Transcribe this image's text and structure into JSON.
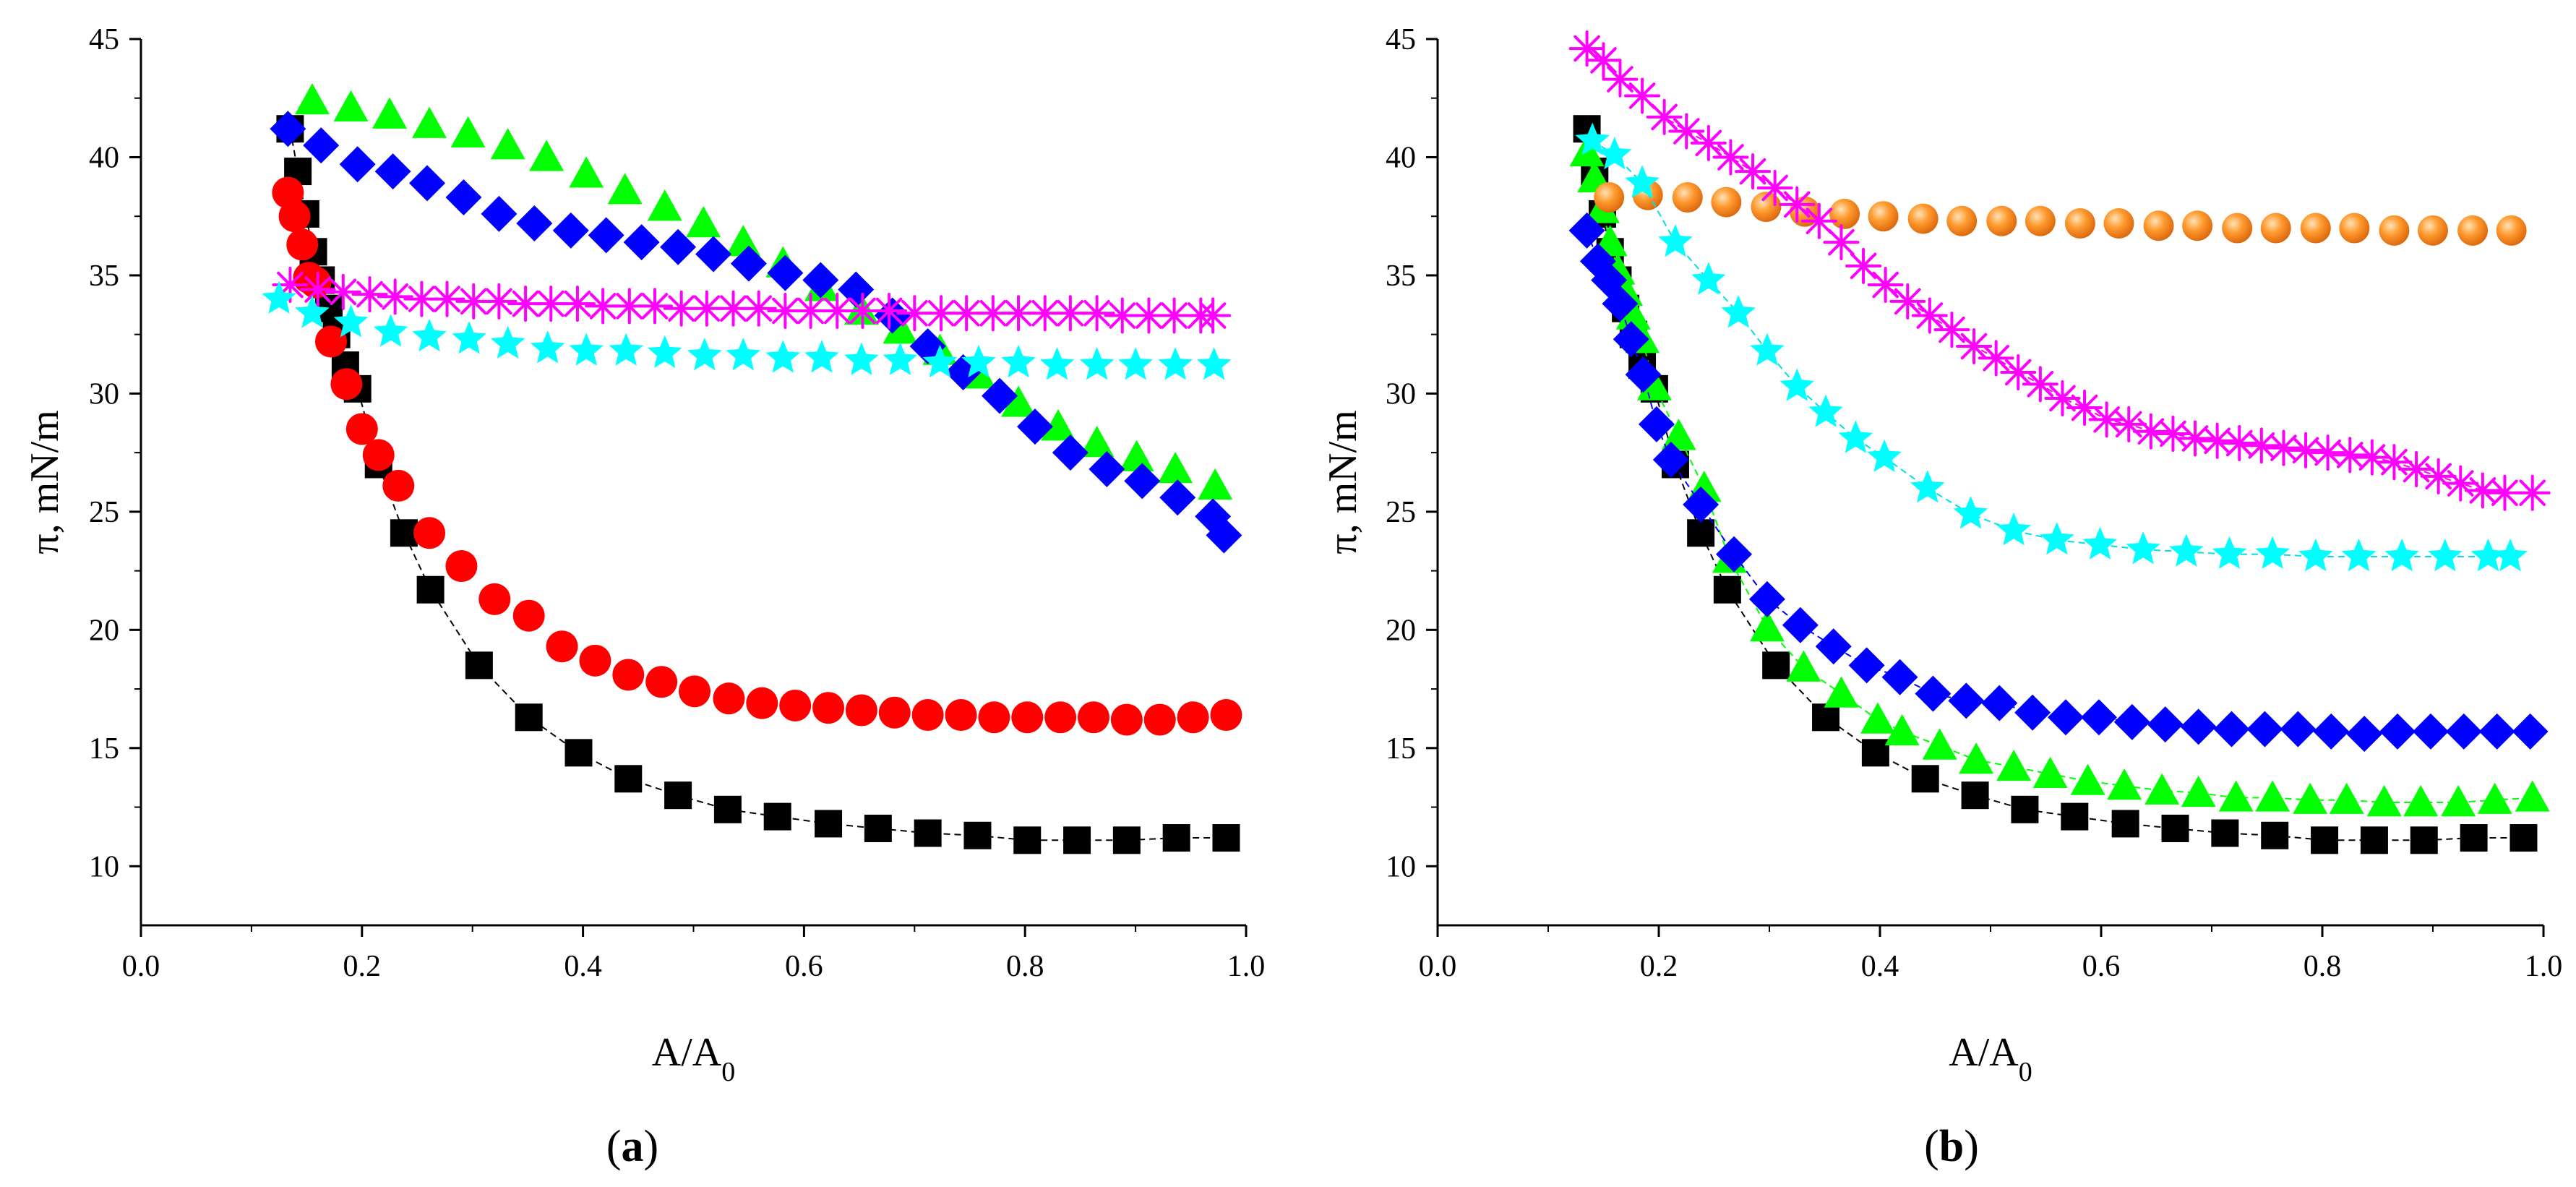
{
  "chart_data": [
    {
      "type": "scatter",
      "panel_label": "(a)",
      "panel_letter": "a",
      "xlabel": "A/A",
      "xlabel_sub": "0",
      "ylabel": "π, mN/m",
      "xlim": [
        0.0,
        1.0
      ],
      "ylim": [
        7.5,
        45
      ],
      "xticks": [
        0.0,
        0.2,
        0.4,
        0.6,
        0.8,
        1.0
      ],
      "xtick_labels": [
        "0.0",
        "0.2",
        "0.4",
        "0.6",
        "0.8",
        "1.0"
      ],
      "yticks": [
        10,
        15,
        20,
        25,
        30,
        35,
        40,
        45
      ],
      "ytick_labels": [
        "10",
        "15",
        "20",
        "25",
        "30",
        "35",
        "40",
        "45"
      ],
      "series": [
        {
          "name": "black-squares",
          "marker": "square",
          "color": "#000000",
          "line": true,
          "x": [
            0.135,
            0.142,
            0.149,
            0.156,
            0.163,
            0.17,
            0.177,
            0.185,
            0.196,
            0.215,
            0.238,
            0.262,
            0.306,
            0.351,
            0.396,
            0.441,
            0.486,
            0.531,
            0.576,
            0.622,
            0.667,
            0.712,
            0.757,
            0.802,
            0.847,
            0.892,
            0.937,
            0.982
          ],
          "y": [
            41.2,
            39.4,
            37.6,
            36.0,
            34.8,
            33.6,
            32.5,
            31.2,
            30.2,
            27.0,
            24.1,
            21.7,
            18.5,
            16.3,
            14.8,
            13.7,
            13.0,
            12.4,
            12.1,
            11.8,
            11.6,
            11.4,
            11.3,
            11.1,
            11.1,
            11.1,
            11.2,
            11.2
          ]
        },
        {
          "name": "red-circles",
          "marker": "circle",
          "color": "#ff0000",
          "line": false,
          "x": [
            0.133,
            0.139,
            0.146,
            0.152,
            0.158,
            0.172,
            0.186,
            0.2,
            0.215,
            0.233,
            0.261,
            0.29,
            0.32,
            0.351,
            0.381,
            0.411,
            0.441,
            0.471,
            0.501,
            0.532,
            0.562,
            0.592,
            0.622,
            0.652,
            0.682,
            0.712,
            0.742,
            0.772,
            0.802,
            0.832,
            0.862,
            0.892,
            0.922,
            0.952,
            0.982
          ],
          "y": [
            38.5,
            37.5,
            36.3,
            34.9,
            34.7,
            32.2,
            30.4,
            28.5,
            27.4,
            26.1,
            24.1,
            22.7,
            21.3,
            20.6,
            19.3,
            18.7,
            18.1,
            17.8,
            17.4,
            17.1,
            16.9,
            16.8,
            16.7,
            16.6,
            16.5,
            16.4,
            16.4,
            16.3,
            16.3,
            16.3,
            16.3,
            16.2,
            16.2,
            16.3,
            16.4
          ]
        },
        {
          "name": "green-triangles",
          "marker": "triangle",
          "color": "#00ff00",
          "line": false,
          "x": [
            0.155,
            0.19,
            0.225,
            0.261,
            0.296,
            0.332,
            0.367,
            0.403,
            0.438,
            0.474,
            0.509,
            0.545,
            0.581,
            0.616,
            0.652,
            0.687,
            0.723,
            0.758,
            0.794,
            0.83,
            0.865,
            0.901,
            0.936,
            0.972
          ],
          "y": [
            42.4,
            42.1,
            41.8,
            41.4,
            41.0,
            40.5,
            40.0,
            39.3,
            38.6,
            37.9,
            37.2,
            36.4,
            35.5,
            34.5,
            33.5,
            32.7,
            31.8,
            30.8,
            29.6,
            28.6,
            27.9,
            27.3,
            26.8,
            26.1
          ]
        },
        {
          "name": "blue-diamonds",
          "marker": "diamond",
          "color": "#0000ff",
          "line": false,
          "x": [
            0.133,
            0.163,
            0.196,
            0.228,
            0.259,
            0.292,
            0.324,
            0.356,
            0.389,
            0.421,
            0.453,
            0.486,
            0.518,
            0.55,
            0.583,
            0.615,
            0.647,
            0.68,
            0.712,
            0.744,
            0.777,
            0.809,
            0.841,
            0.874,
            0.906,
            0.938,
            0.97,
            0.98
          ],
          "y": [
            41.2,
            40.5,
            39.7,
            39.4,
            38.9,
            38.3,
            37.6,
            37.2,
            36.9,
            36.7,
            36.4,
            36.2,
            35.9,
            35.5,
            35.1,
            34.8,
            34.4,
            33.3,
            32.0,
            30.9,
            29.9,
            28.6,
            27.5,
            26.8,
            26.3,
            25.6,
            24.8,
            24.0
          ]
        },
        {
          "name": "magenta-asterisks",
          "marker": "asterisk",
          "color": "#ff00ff",
          "line": false,
          "x": [
            0.135,
            0.16,
            0.183,
            0.207,
            0.23,
            0.254,
            0.277,
            0.301,
            0.324,
            0.348,
            0.371,
            0.395,
            0.418,
            0.442,
            0.465,
            0.489,
            0.512,
            0.536,
            0.559,
            0.583,
            0.606,
            0.63,
            0.653,
            0.677,
            0.7,
            0.724,
            0.747,
            0.771,
            0.794,
            0.818,
            0.841,
            0.865,
            0.888,
            0.912,
            0.935,
            0.959,
            0.97
          ],
          "y": [
            34.6,
            34.4,
            34.3,
            34.2,
            34.1,
            34.0,
            34.0,
            33.9,
            33.9,
            33.8,
            33.8,
            33.8,
            33.7,
            33.7,
            33.7,
            33.6,
            33.6,
            33.6,
            33.6,
            33.5,
            33.5,
            33.5,
            33.5,
            33.5,
            33.4,
            33.4,
            33.4,
            33.4,
            33.4,
            33.4,
            33.4,
            33.4,
            33.3,
            33.3,
            33.3,
            33.3,
            33.3
          ]
        },
        {
          "name": "cyan-stars",
          "marker": "star",
          "color": "#00ffff",
          "line": false,
          "x": [
            0.125,
            0.155,
            0.19,
            0.226,
            0.261,
            0.297,
            0.332,
            0.368,
            0.403,
            0.439,
            0.474,
            0.51,
            0.545,
            0.581,
            0.616,
            0.652,
            0.687,
            0.723,
            0.758,
            0.794,
            0.829,
            0.865,
            0.9,
            0.936,
            0.971
          ],
          "y": [
            34.0,
            33.4,
            33.0,
            32.6,
            32.4,
            32.3,
            32.1,
            31.9,
            31.8,
            31.8,
            31.7,
            31.6,
            31.6,
            31.5,
            31.5,
            31.4,
            31.4,
            31.3,
            31.3,
            31.3,
            31.2,
            31.2,
            31.2,
            31.2,
            31.2
          ]
        }
      ]
    },
    {
      "type": "scatter",
      "panel_label": "(b)",
      "panel_letter": "b",
      "xlabel": "A/A",
      "xlabel_sub": "0",
      "ylabel": "π, mN/m",
      "xlim": [
        0.0,
        1.0
      ],
      "ylim": [
        7.5,
        45
      ],
      "xticks": [
        0.0,
        0.2,
        0.4,
        0.6,
        0.8,
        1.0
      ],
      "xtick_labels": [
        "0.0",
        "0.2",
        "0.4",
        "0.6",
        "0.8",
        "1.0"
      ],
      "yticks": [
        10,
        15,
        20,
        25,
        30,
        35,
        40,
        45
      ],
      "ytick_labels": [
        "10",
        "15",
        "20",
        "25",
        "30",
        "35",
        "40",
        "45"
      ],
      "series": [
        {
          "name": "black-squares",
          "marker": "square",
          "color": "#000000",
          "line": true,
          "x": [
            0.135,
            0.142,
            0.149,
            0.156,
            0.163,
            0.17,
            0.177,
            0.185,
            0.196,
            0.215,
            0.238,
            0.262,
            0.306,
            0.351,
            0.396,
            0.441,
            0.486,
            0.531,
            0.576,
            0.622,
            0.667,
            0.712,
            0.757,
            0.802,
            0.847,
            0.892,
            0.937,
            0.982
          ],
          "y": [
            41.2,
            39.4,
            37.6,
            36.0,
            34.8,
            33.6,
            32.5,
            31.2,
            30.2,
            27.0,
            24.1,
            21.7,
            18.5,
            16.3,
            14.8,
            13.7,
            13.0,
            12.4,
            12.1,
            11.8,
            11.6,
            11.4,
            11.3,
            11.1,
            11.1,
            11.1,
            11.2,
            11.2
          ]
        },
        {
          "name": "green-triangles",
          "marker": "triangle",
          "color": "#00ff00",
          "line": true,
          "x": [
            0.135,
            0.142,
            0.149,
            0.156,
            0.163,
            0.17,
            0.177,
            0.185,
            0.196,
            0.218,
            0.241,
            0.264,
            0.298,
            0.331,
            0.365,
            0.398,
            0.42,
            0.454,
            0.487,
            0.521,
            0.554,
            0.588,
            0.621,
            0.655,
            0.688,
            0.722,
            0.755,
            0.789,
            0.822,
            0.856,
            0.889,
            0.923,
            0.956,
            0.99
          ],
          "y": [
            40.2,
            39.1,
            37.8,
            36.4,
            35.2,
            34.3,
            33.3,
            32.3,
            30.3,
            28.2,
            26.0,
            23.0,
            20.1,
            18.4,
            17.3,
            16.2,
            15.7,
            15.1,
            14.5,
            14.2,
            13.9,
            13.6,
            13.4,
            13.2,
            13.1,
            12.9,
            12.9,
            12.8,
            12.8,
            12.7,
            12.7,
            12.7,
            12.8,
            12.9
          ]
        },
        {
          "name": "blue-diamonds",
          "marker": "diamond",
          "color": "#0000ff",
          "line": true,
          "x": [
            0.135,
            0.145,
            0.155,
            0.165,
            0.175,
            0.186,
            0.198,
            0.211,
            0.238,
            0.268,
            0.298,
            0.328,
            0.358,
            0.388,
            0.418,
            0.448,
            0.478,
            0.508,
            0.538,
            0.568,
            0.598,
            0.628,
            0.658,
            0.688,
            0.718,
            0.748,
            0.778,
            0.808,
            0.838,
            0.868,
            0.898,
            0.928,
            0.958,
            0.988
          ],
          "y": [
            36.9,
            35.6,
            34.8,
            33.8,
            32.3,
            30.8,
            28.7,
            27.2,
            25.3,
            23.2,
            21.3,
            20.2,
            19.3,
            18.5,
            18.0,
            17.3,
            17.0,
            16.9,
            16.5,
            16.3,
            16.3,
            16.1,
            16.0,
            15.9,
            15.8,
            15.8,
            15.8,
            15.7,
            15.6,
            15.7,
            15.7,
            15.7,
            15.7,
            15.7
          ]
        },
        {
          "name": "orange-spheres",
          "marker": "sphere",
          "color": "#ff8c1a",
          "line": false,
          "x": [
            0.155,
            0.19,
            0.226,
            0.261,
            0.297,
            0.332,
            0.368,
            0.403,
            0.439,
            0.474,
            0.51,
            0.545,
            0.581,
            0.616,
            0.652,
            0.687,
            0.723,
            0.758,
            0.794,
            0.829,
            0.865,
            0.9,
            0.936,
            0.971
          ],
          "y": [
            38.3,
            38.4,
            38.3,
            38.1,
            37.9,
            37.7,
            37.6,
            37.5,
            37.4,
            37.3,
            37.3,
            37.3,
            37.2,
            37.2,
            37.1,
            37.1,
            37.0,
            37.0,
            37.0,
            37.0,
            36.9,
            36.9,
            36.9,
            36.9
          ]
        },
        {
          "name": "magenta-asterisks",
          "marker": "asterisk",
          "color": "#ff00ff",
          "line": true,
          "x": [
            0.135,
            0.15,
            0.165,
            0.185,
            0.205,
            0.225,
            0.245,
            0.265,
            0.285,
            0.305,
            0.325,
            0.345,
            0.365,
            0.385,
            0.405,
            0.425,
            0.445,
            0.465,
            0.485,
            0.505,
            0.525,
            0.545,
            0.565,
            0.585,
            0.605,
            0.625,
            0.645,
            0.665,
            0.685,
            0.705,
            0.725,
            0.745,
            0.765,
            0.785,
            0.805,
            0.825,
            0.845,
            0.865,
            0.885,
            0.905,
            0.925,
            0.945,
            0.965,
            0.99
          ],
          "y": [
            44.6,
            44.1,
            43.3,
            42.6,
            41.7,
            41.1,
            40.6,
            40.0,
            39.4,
            38.7,
            38.0,
            37.3,
            36.4,
            35.4,
            34.6,
            33.9,
            33.3,
            32.7,
            32.0,
            31.5,
            30.9,
            30.4,
            29.8,
            29.4,
            28.9,
            28.7,
            28.4,
            28.3,
            28.1,
            28.0,
            27.9,
            27.8,
            27.7,
            27.6,
            27.5,
            27.4,
            27.3,
            27.1,
            26.8,
            26.5,
            26.2,
            25.9,
            25.8,
            25.8
          ]
        },
        {
          "name": "cyan-stars",
          "marker": "star",
          "color": "#00ffff",
          "line": true,
          "x": [
            0.14,
            0.16,
            0.185,
            0.215,
            0.245,
            0.272,
            0.298,
            0.325,
            0.351,
            0.378,
            0.404,
            0.443,
            0.482,
            0.521,
            0.56,
            0.599,
            0.638,
            0.677,
            0.716,
            0.755,
            0.794,
            0.833,
            0.872,
            0.911,
            0.95,
            0.97
          ],
          "y": [
            40.7,
            40.1,
            38.9,
            36.4,
            34.8,
            33.4,
            31.8,
            30.3,
            29.2,
            28.1,
            27.3,
            26.0,
            24.9,
            24.2,
            23.8,
            23.6,
            23.4,
            23.3,
            23.2,
            23.2,
            23.1,
            23.1,
            23.1,
            23.1,
            23.1,
            23.1
          ]
        }
      ]
    }
  ]
}
